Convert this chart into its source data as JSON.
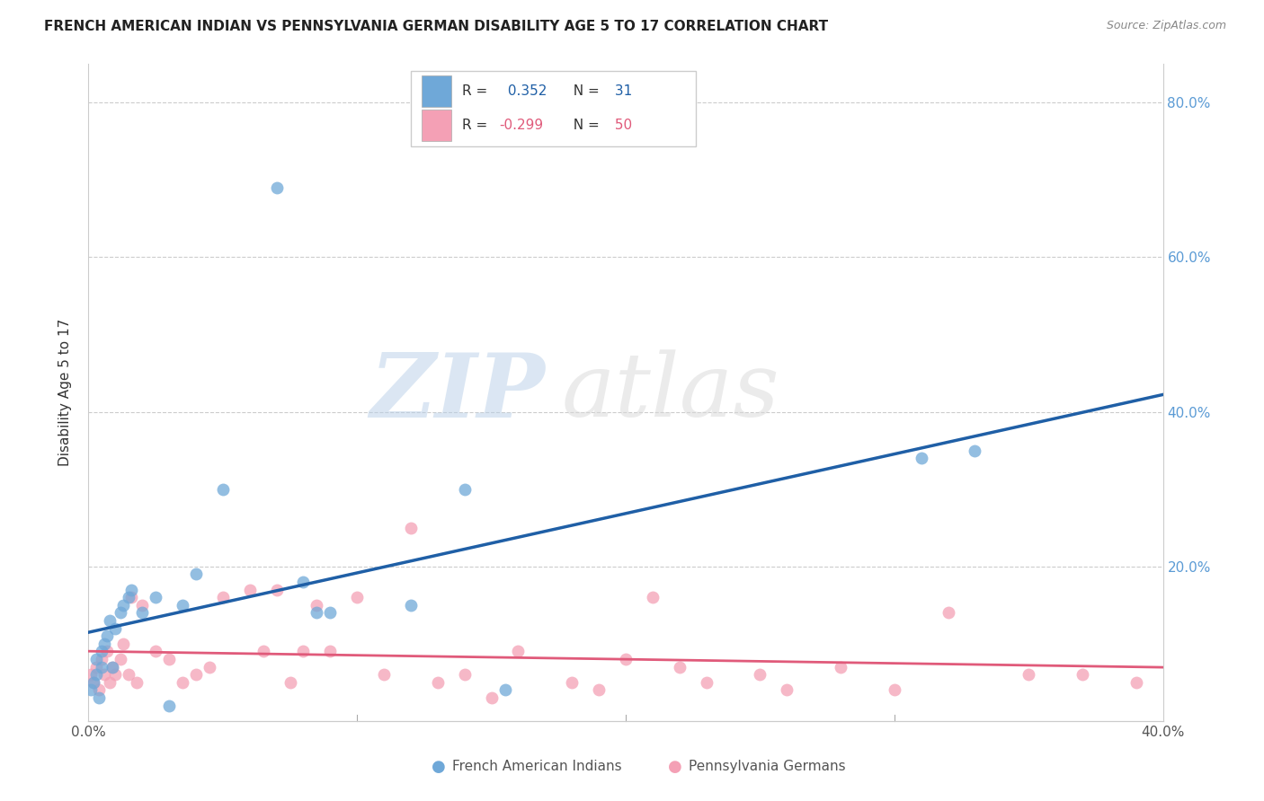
{
  "title": "FRENCH AMERICAN INDIAN VS PENNSYLVANIA GERMAN DISABILITY AGE 5 TO 17 CORRELATION CHART",
  "source": "Source: ZipAtlas.com",
  "ylabel": "Disability Age 5 to 17",
  "xlim": [
    0.0,
    0.4
  ],
  "ylim": [
    0.0,
    0.85
  ],
  "blue_R": 0.352,
  "blue_N": 31,
  "pink_R": -0.299,
  "pink_N": 50,
  "blue_color": "#6fa8d8",
  "pink_color": "#f4a0b5",
  "blue_line_color": "#1f5fa6",
  "pink_line_color": "#e05a7a",
  "background_color": "#ffffff",
  "grid_color": "#cccccc",
  "blue_x": [
    0.001,
    0.002,
    0.003,
    0.003,
    0.004,
    0.005,
    0.005,
    0.006,
    0.007,
    0.008,
    0.009,
    0.01,
    0.012,
    0.013,
    0.015,
    0.016,
    0.02,
    0.025,
    0.03,
    0.035,
    0.04,
    0.05,
    0.07,
    0.08,
    0.085,
    0.09,
    0.12,
    0.14,
    0.155,
    0.31,
    0.33
  ],
  "blue_y": [
    0.04,
    0.05,
    0.06,
    0.08,
    0.03,
    0.07,
    0.09,
    0.1,
    0.11,
    0.13,
    0.07,
    0.12,
    0.14,
    0.15,
    0.16,
    0.17,
    0.14,
    0.16,
    0.02,
    0.15,
    0.19,
    0.3,
    0.69,
    0.18,
    0.14,
    0.14,
    0.15,
    0.3,
    0.04,
    0.34,
    0.35
  ],
  "pink_x": [
    0.001,
    0.002,
    0.003,
    0.004,
    0.005,
    0.006,
    0.007,
    0.008,
    0.009,
    0.01,
    0.012,
    0.013,
    0.015,
    0.016,
    0.018,
    0.02,
    0.025,
    0.03,
    0.035,
    0.04,
    0.045,
    0.05,
    0.06,
    0.065,
    0.07,
    0.075,
    0.08,
    0.085,
    0.09,
    0.1,
    0.11,
    0.12,
    0.13,
    0.14,
    0.15,
    0.16,
    0.18,
    0.19,
    0.2,
    0.21,
    0.22,
    0.23,
    0.25,
    0.26,
    0.28,
    0.3,
    0.32,
    0.35,
    0.37,
    0.39
  ],
  "pink_y": [
    0.06,
    0.05,
    0.07,
    0.04,
    0.08,
    0.06,
    0.09,
    0.05,
    0.07,
    0.06,
    0.08,
    0.1,
    0.06,
    0.16,
    0.05,
    0.15,
    0.09,
    0.08,
    0.05,
    0.06,
    0.07,
    0.16,
    0.17,
    0.09,
    0.17,
    0.05,
    0.09,
    0.15,
    0.09,
    0.16,
    0.06,
    0.25,
    0.05,
    0.06,
    0.03,
    0.09,
    0.05,
    0.04,
    0.08,
    0.16,
    0.07,
    0.05,
    0.06,
    0.04,
    0.07,
    0.04,
    0.14,
    0.06,
    0.06,
    0.05
  ],
  "watermark_zip": "ZIP",
  "watermark_atlas": "atlas",
  "marker_size": 100
}
